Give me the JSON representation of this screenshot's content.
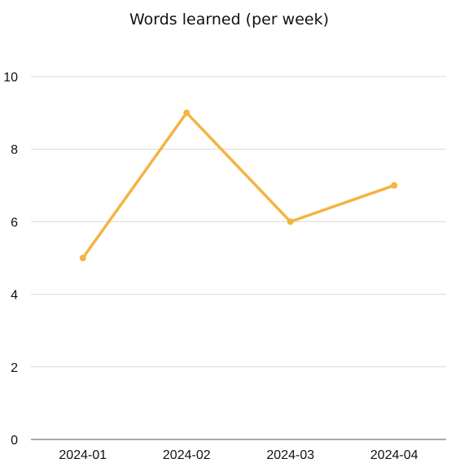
{
  "chart_data": {
    "type": "line",
    "title": "Words learned (per week)",
    "categories": [
      "2024-01",
      "2024-02",
      "2024-03",
      "2024-04"
    ],
    "series": [
      {
        "values": [
          5,
          9,
          6,
          7
        ]
      }
    ],
    "ylim": [
      0,
      10
    ],
    "yticks": [
      0,
      2,
      4,
      6,
      8,
      10
    ],
    "grid": true,
    "xlabel": "",
    "ylabel": "",
    "colors": {
      "line": "#F5B342",
      "grid": "#d9d9d9",
      "axis": "#555555"
    }
  }
}
